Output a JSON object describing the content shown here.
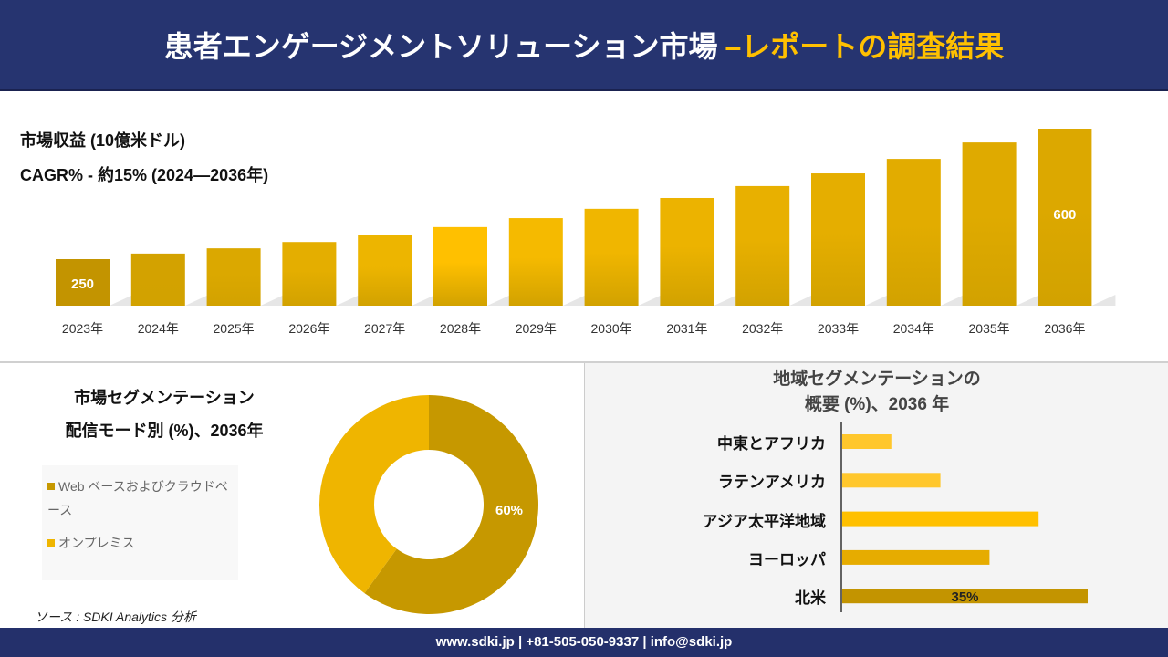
{
  "header": {
    "title_main": "患者エンゲージメントソリューション市場",
    "title_highlight": "–レポートの調査結果"
  },
  "revenue": {
    "subtitle": "市場収益 (10億米ドル)",
    "cagr": "CAGR% - 約15% (2024―2036年)"
  },
  "chart_data": [
    {
      "type": "bar",
      "title": "市場収益 (10億米ドル)",
      "categories": [
        "2023年",
        "2024年",
        "2025年",
        "2026年",
        "2027年",
        "2028年",
        "2029年",
        "2030年",
        "2031年",
        "2032年",
        "2033年",
        "2034年",
        "2035年",
        "2036年"
      ],
      "values": [
        250,
        265,
        279,
        296,
        316,
        336,
        360,
        385,
        414,
        446,
        480,
        519,
        563,
        600
      ],
      "data_labels": {
        "0": "250",
        "13": "600"
      },
      "colors": [
        "#C39400",
        "#D3A200",
        "#DBA800",
        "#E4AE00",
        "#EDB500",
        "#FFC000",
        "#F5BA00",
        "#F0B600",
        "#ECB300",
        "#E8B000",
        "#E5AE00",
        "#E2AC00",
        "#DFAA00",
        "#DCA800"
      ],
      "grid": false
    },
    {
      "type": "pie",
      "title": "市場セグメンテーション 配信モード別 (%)、2036年",
      "donut": true,
      "slices": [
        {
          "label": "Web ベースおよびクラウドベース",
          "value": 60,
          "color": "#C69800",
          "data_label": "60%"
        },
        {
          "label": "オンプレミス",
          "value": 40,
          "color": "#EFB500"
        }
      ],
      "legend": "left"
    },
    {
      "type": "bar",
      "orientation": "horizontal",
      "title": "地域セグメンテーションの概要 (%)、2036 年",
      "categories": [
        "中東とアフリカ",
        "ラテンアメリカ",
        "アジア太平洋地域",
        "ヨーロッパ",
        "北米"
      ],
      "values": [
        7,
        14,
        28,
        21,
        35
      ],
      "data_labels": {
        "4": "35%"
      },
      "colors": [
        "#FFC72C",
        "#FFC72C",
        "#FFC000",
        "#E6AC00",
        "#C39400"
      ]
    }
  ],
  "segment": {
    "title1": "市場セグメンテーション",
    "title2": "配信モード別 (%)、2036年"
  },
  "region": {
    "title1": "地域セグメンテーションの",
    "title2": "概要 (%)、2036 年"
  },
  "source": "ソース : SDKI Analytics 分析",
  "footer": "www.sdki.jp | +81-505-050-9337 | info@sdki.jp"
}
